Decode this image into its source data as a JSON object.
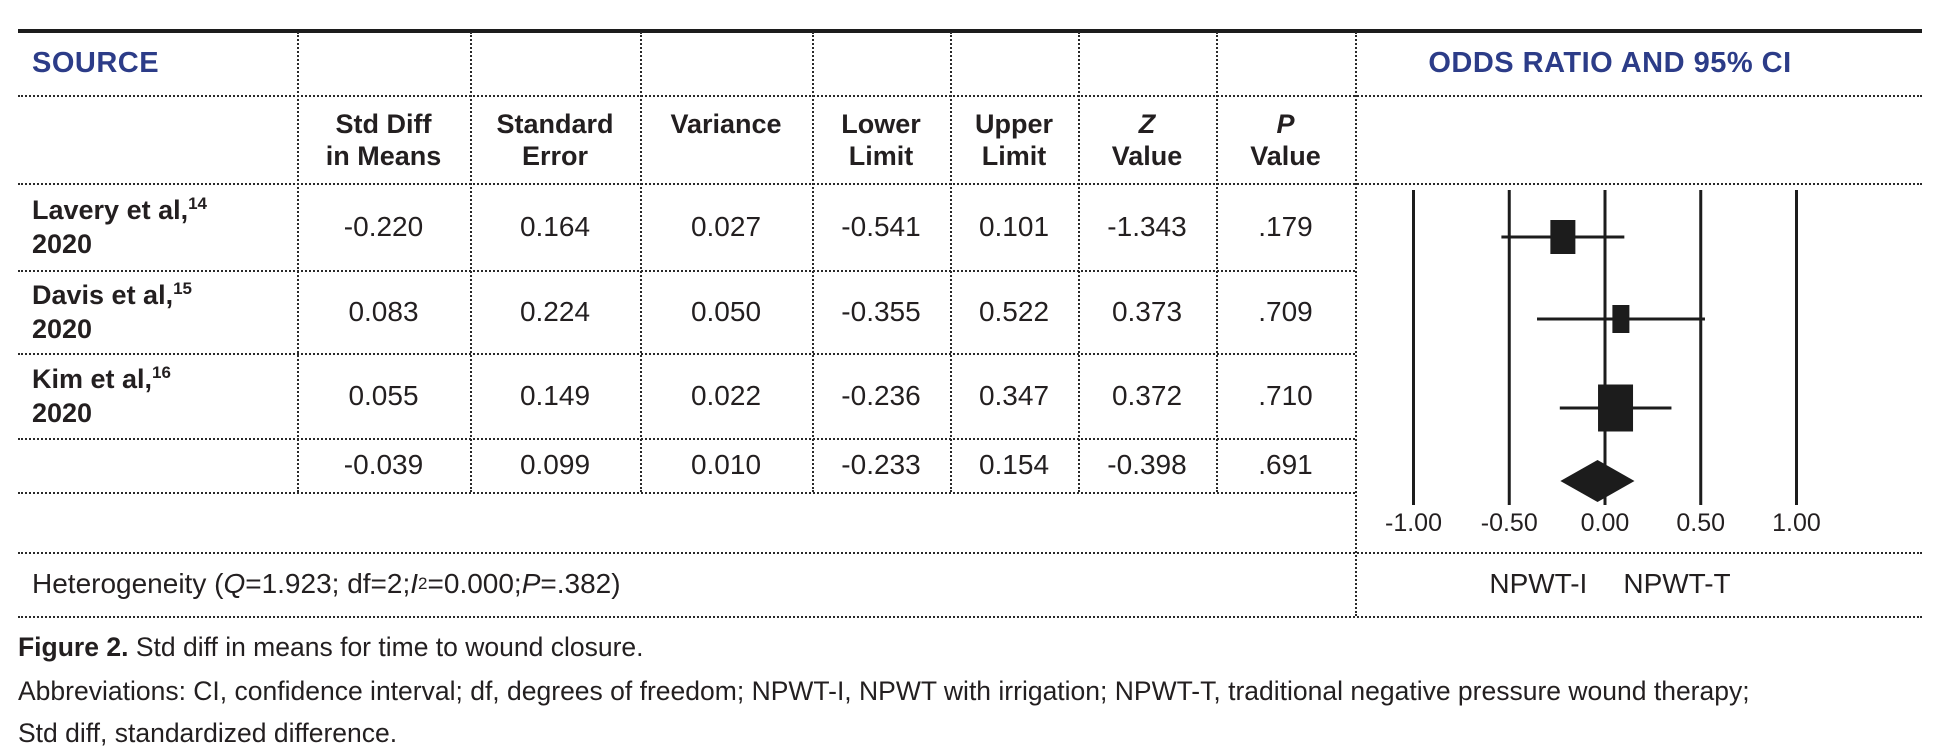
{
  "colors": {
    "accent_blue": "#2c3c88",
    "ink": "#231f20"
  },
  "table": {
    "source_header": "SOURCE",
    "plot_header": "ODDS RATIO AND 95% CI",
    "columns": [
      {
        "line1": "Std Diff",
        "line2": "in Means",
        "italic1": false
      },
      {
        "line1": "Standard",
        "line2": "Error",
        "italic1": false
      },
      {
        "line1": "Variance",
        "line2": "",
        "italic1": false
      },
      {
        "line1": "Lower",
        "line2": "Limit",
        "italic1": false
      },
      {
        "line1": "Upper",
        "line2": "Limit",
        "italic1": false
      },
      {
        "line1": "Z",
        "line2": "Value",
        "italic1": true
      },
      {
        "line1": "P",
        "line2": "Value",
        "italic1": true
      }
    ],
    "rows": [
      {
        "source": "Lavery et al,",
        "ref": "14",
        "year": "2020",
        "values": [
          "-0.220",
          "0.164",
          "0.027",
          "-0.541",
          "0.101",
          "-1.343",
          ".179"
        ]
      },
      {
        "source": "Davis et al,",
        "ref": "15",
        "year": "2020",
        "values": [
          "0.083",
          "0.224",
          "0.050",
          "-0.355",
          "0.522",
          "0.373",
          ".709"
        ]
      },
      {
        "source": "Kim et al,",
        "ref": "16",
        "year": "2020",
        "values": [
          "0.055",
          "0.149",
          "0.022",
          "-0.236",
          "0.347",
          "0.372",
          ".710"
        ]
      }
    ],
    "summary_values": [
      "-0.039",
      "0.099",
      "0.010",
      "-0.233",
      "0.154",
      "-0.398",
      ".691"
    ],
    "heterogeneity": {
      "prefix": "Heterogeneity (",
      "q": "Q",
      "q_rest": "=1.923; df=2; ",
      "i": "I",
      "i_sup": "2",
      "i_rest": "=0.000; ",
      "p": "P",
      "p_rest": "=.382)"
    }
  },
  "chart_data": {
    "type": "forest",
    "title": "ODDS RATIO AND 95% CI",
    "xlabel": "Std diff in means",
    "xlim": [
      -1.45,
      1.45
    ],
    "x_ticks": [
      -1.0,
      -0.5,
      0.0,
      0.5,
      1.0
    ],
    "x_tick_labels": [
      "-1.00",
      "-0.50",
      "0.00",
      "0.50",
      "1.00"
    ],
    "group_labels": [
      "NPWT-I",
      "NPWT-T"
    ],
    "studies": [
      {
        "name": "Lavery et al, 2020",
        "estimate": -0.22,
        "lower": -0.541,
        "upper": 0.101,
        "marker_w": 25,
        "marker_h": 34
      },
      {
        "name": "Davis et al, 2020",
        "estimate": 0.083,
        "lower": -0.355,
        "upper": 0.522,
        "marker_w": 17,
        "marker_h": 28
      },
      {
        "name": "Kim et al, 2020",
        "estimate": 0.055,
        "lower": -0.236,
        "upper": 0.347,
        "marker_w": 35,
        "marker_h": 47
      }
    ],
    "summary": {
      "estimate": -0.039,
      "lower": -0.233,
      "upper": 0.154
    }
  },
  "caption": {
    "figure_label": "Figure 2.",
    "figure_text": " Std diff in means for time to wound closure.",
    "abbreviations_line1": "Abbreviations: CI, confidence interval; df, degrees of freedom; NPWT-I, NPWT with irrigation; NPWT-T, traditional negative pressure wound therapy;",
    "abbreviations_line2": "Std diff, standardized difference."
  }
}
